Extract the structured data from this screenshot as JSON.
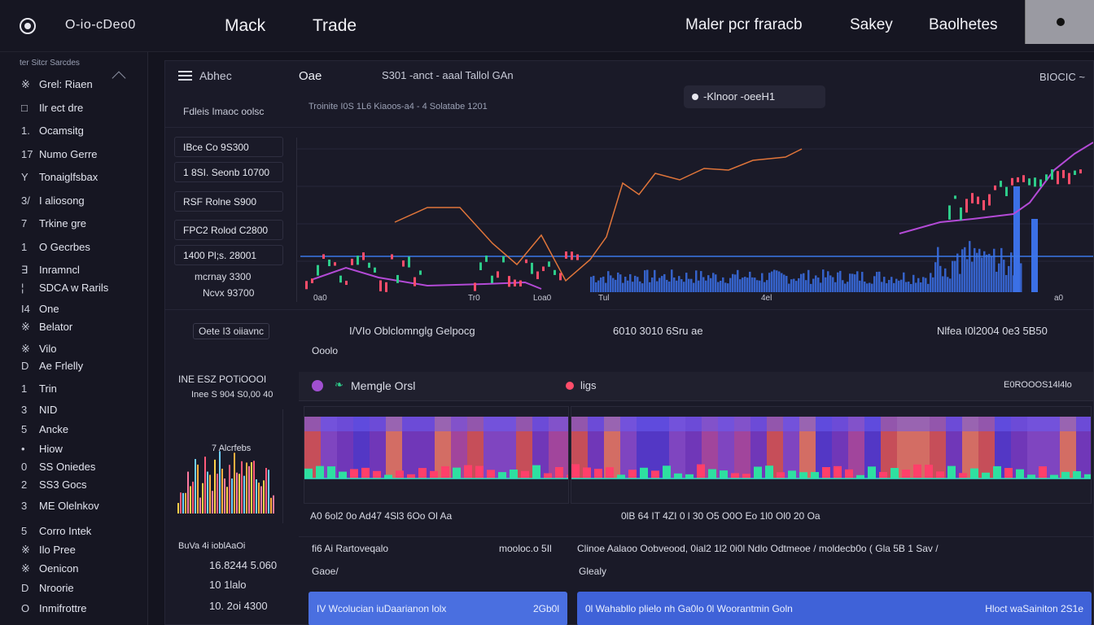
{
  "topbar": {
    "brand": "O-io-cDeo0",
    "nav": [
      "Mack",
      "Trade",
      "Maler pcr fraracb",
      "Sakey",
      "Baolhetes"
    ]
  },
  "sidebar": {
    "title": "ter Sitcr Sarcdes",
    "items": [
      {
        "glyph": "※",
        "label": "Grel: Riaen"
      },
      {
        "glyph": "□",
        "label": "Ilr ect dre"
      },
      {
        "glyph": "1.",
        "label": "Ocamsitg"
      },
      {
        "glyph": "17",
        "label": "Numo Gerre"
      },
      {
        "glyph": "Y",
        "label": "Tonaiglfsbax"
      },
      {
        "glyph": "3/",
        "label": "I aliosong"
      },
      {
        "glyph": "7",
        "label": "Trkine gre"
      },
      {
        "glyph": "1",
        "label": "O Gecrbes"
      },
      {
        "glyph": "∃",
        "label": "Inramncl"
      },
      {
        "glyph": "¦",
        "label": "SDCA w Rarils"
      },
      {
        "glyph": "I4",
        "label": "One"
      },
      {
        "glyph": "※",
        "label": "Belator"
      },
      {
        "glyph": "※",
        "label": "Vilo"
      },
      {
        "glyph": "D",
        "label": "Ae Frlelly"
      },
      {
        "glyph": "1",
        "label": "Trin"
      },
      {
        "glyph": "3",
        "label": "NID"
      },
      {
        "glyph": "5",
        "label": "Ancke"
      },
      {
        "glyph": "•",
        "label": "Hiow"
      },
      {
        "glyph": "0",
        "label": "SS Oniedes"
      },
      {
        "glyph": "2",
        "label": "SS3 Gocs"
      },
      {
        "glyph": "3",
        "label": "ME Olelnkov"
      },
      {
        "glyph": "5",
        "label": "Corro Intek"
      },
      {
        "glyph": "※",
        "label": "Ilo Pree"
      },
      {
        "glyph": "※",
        "label": "Oenicon"
      },
      {
        "glyph": "D",
        "label": "Nroorie"
      },
      {
        "glyph": "O",
        "label": "Inmifrottre"
      }
    ]
  },
  "header": {
    "menu_label": "Abhec",
    "tab": "Oae",
    "price_line": "S301 -anct - aaal Tallol GAn",
    "right_label": "BIOCIC ~",
    "sub_left": "Fdleis Imaoc oolsc",
    "sub_mid": "Troinite I0S 1L6 Kiaoos-a4 - 4 Solatabe 1201",
    "search_text": "-Klnoor -oeeH1"
  },
  "stats": [
    "IBce Co 9S300",
    "1 8SI. Seonb 10700",
    "RSF Rolne S900",
    "FPC2 Rolod C2800",
    "1400 Pl;s. 28001"
  ],
  "stats_extra": [
    "mcrnay 3300",
    "Ncvx 93700"
  ],
  "chart_axis": [
    "0a0",
    "Tr0",
    "Loa0",
    "Tul",
    "4el",
    "a0"
  ],
  "summary_row": {
    "left_tag": "Oete I3 oiiavnc",
    "mid": "I/VIo Oblclomnglg Gelpocg",
    "val1": "6010 3010 6Sru ae",
    "right": "Nlfea I0l2004 0e3 5B50",
    "sub": "Ooolo"
  },
  "lower_left": {
    "title": "INE ESZ POTiOOOI",
    "subtitle": "Inee S 904 S0,00 40",
    "chart_title": "7 Alcrfebs"
  },
  "lower_header": {
    "title": "Memgle Orsl",
    "tag": "ligs",
    "right": "E0ROOOS14l4lo"
  },
  "heat_axis_left": "A0 6ol2 0o Ad47 4Sl3 6Oo Ol Aa",
  "heat_axis_right": "0lB 64 IT 4ZI 0 l 30 O5 O0O Eo 1l0 Ol0 20 Oa",
  "bottom_left": [
    "BuVa 4i ioblAaOi",
    "16.8244 5.060",
    "10 1lalo",
    "10. 2oi 4300"
  ],
  "bottom_header": {
    "text": "fi6 Ai Rartoveqalo",
    "mid": "mooloc.o 5Il",
    "right_line": "Clinoe Aalaoo Oobveood, 0ial2 1l2 0i0l Ndlo Odtmeoe / moldecb0o ( Gla 5B 1 Sav /"
  },
  "bottom_labels": {
    "left": "Gaoe/",
    "right": "Glealy"
  },
  "bottom_cards": [
    {
      "text": "IV Wcolucian iuDaarianon lolx",
      "value": "2Gb0l"
    },
    {
      "text": "0l Wahabllo plielo nh Ga0lo 0l Woorantmin Goln",
      "value": "Hloct waSainiton 2S1e"
    }
  ],
  "colors": {
    "accent_blue": "#3a78e8",
    "line_orange": "#e0753a",
    "line_purple": "#b34ad6",
    "bar_blue": "#3b70e6",
    "green": "#2ecc8a",
    "red": "#ff4d6a"
  },
  "icons": [
    "logo-icon",
    "menu-icon",
    "chevron-icon",
    "search-icon",
    "theme-dot-icon"
  ]
}
